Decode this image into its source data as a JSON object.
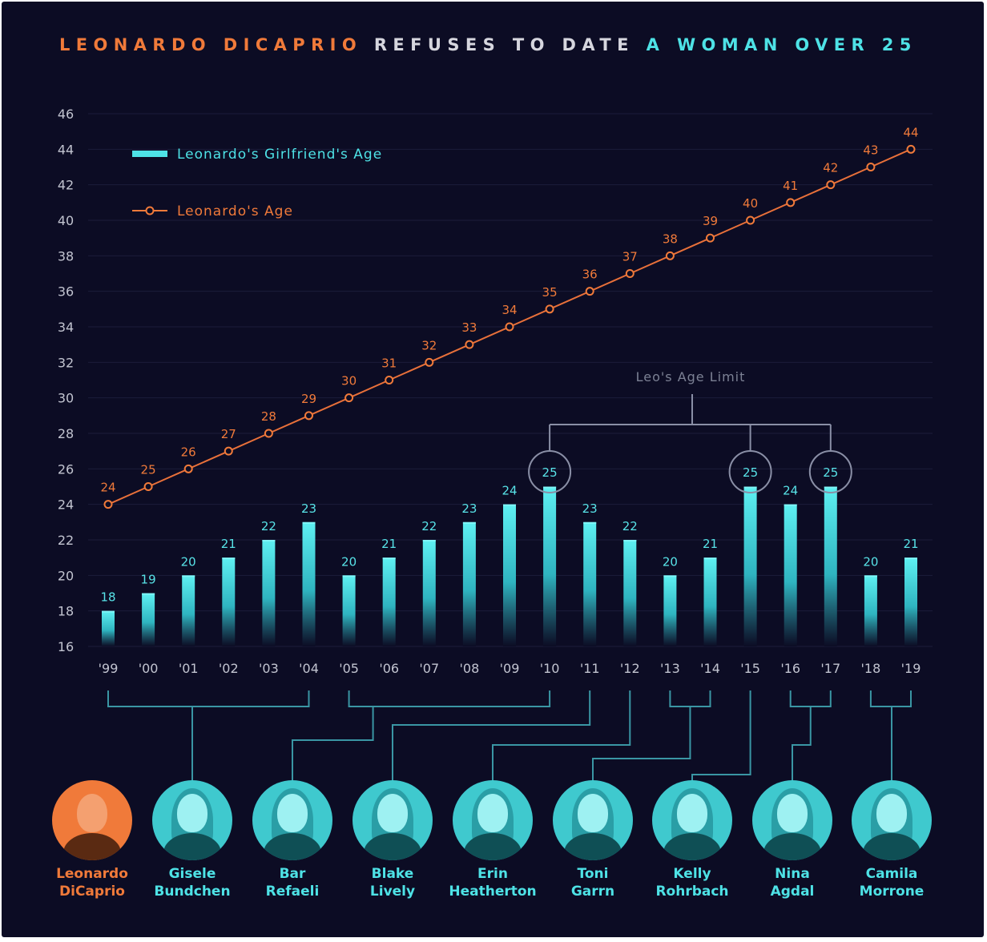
{
  "title": {
    "part1": "LEONARDO DICAPRIO",
    "part2": "REFUSES TO DATE",
    "part3": "A WOMAN OVER 25"
  },
  "legend": {
    "girlfriend": "Leonardo's Girlfriend's Age",
    "leo": "Leonardo's Age"
  },
  "annotation": "Leo's Age Limit",
  "colors": {
    "background": "#0c0c24",
    "orange": "#f07a3a",
    "cyan": "#4ee2e6",
    "title_white": "#d6d6de",
    "connector": "#3a96a4"
  },
  "chart_data": {
    "type": "bar",
    "categories": [
      "'99",
      "'00",
      "'01",
      "'02",
      "'03",
      "'04",
      "'05",
      "'06",
      "'07",
      "'08",
      "'09",
      "'10",
      "'11",
      "'12",
      "'13",
      "'14",
      "'15",
      "'16",
      "'17",
      "'18",
      "'19"
    ],
    "series": [
      {
        "name": "Leonardo's Girlfriend's Age",
        "type": "bar",
        "values": [
          18,
          19,
          20,
          21,
          22,
          23,
          20,
          21,
          22,
          23,
          24,
          25,
          23,
          22,
          20,
          21,
          25,
          24,
          25,
          20,
          21
        ]
      },
      {
        "name": "Leonardo's Age",
        "type": "line",
        "values": [
          24,
          25,
          26,
          27,
          28,
          29,
          30,
          31,
          32,
          33,
          34,
          35,
          36,
          37,
          38,
          39,
          40,
          41,
          42,
          43,
          44
        ]
      }
    ],
    "ylim": [
      16,
      46
    ],
    "yticks": [
      16,
      18,
      20,
      22,
      24,
      26,
      28,
      30,
      32,
      34,
      36,
      38,
      40,
      42,
      44,
      46
    ],
    "legend_position": "top-left",
    "grid": true
  },
  "people": [
    {
      "first": "Leonardo",
      "last": "DiCaprio",
      "color": "orange"
    },
    {
      "first": "Gisele",
      "last": "Bundchen",
      "color": "cyan"
    },
    {
      "first": "Bar",
      "last": "Refaeli",
      "color": "cyan"
    },
    {
      "first": "Blake",
      "last": "Lively",
      "color": "cyan"
    },
    {
      "first": "Erin",
      "last": "Heatherton",
      "color": "cyan"
    },
    {
      "first": "Toni",
      "last": "Garrn",
      "color": "cyan"
    },
    {
      "first": "Kelly",
      "last": "Rohrbach",
      "color": "cyan"
    },
    {
      "first": "Nina",
      "last": "Agdal",
      "color": "cyan"
    },
    {
      "first": "Camila",
      "last": "Morrone",
      "color": "cyan"
    }
  ]
}
